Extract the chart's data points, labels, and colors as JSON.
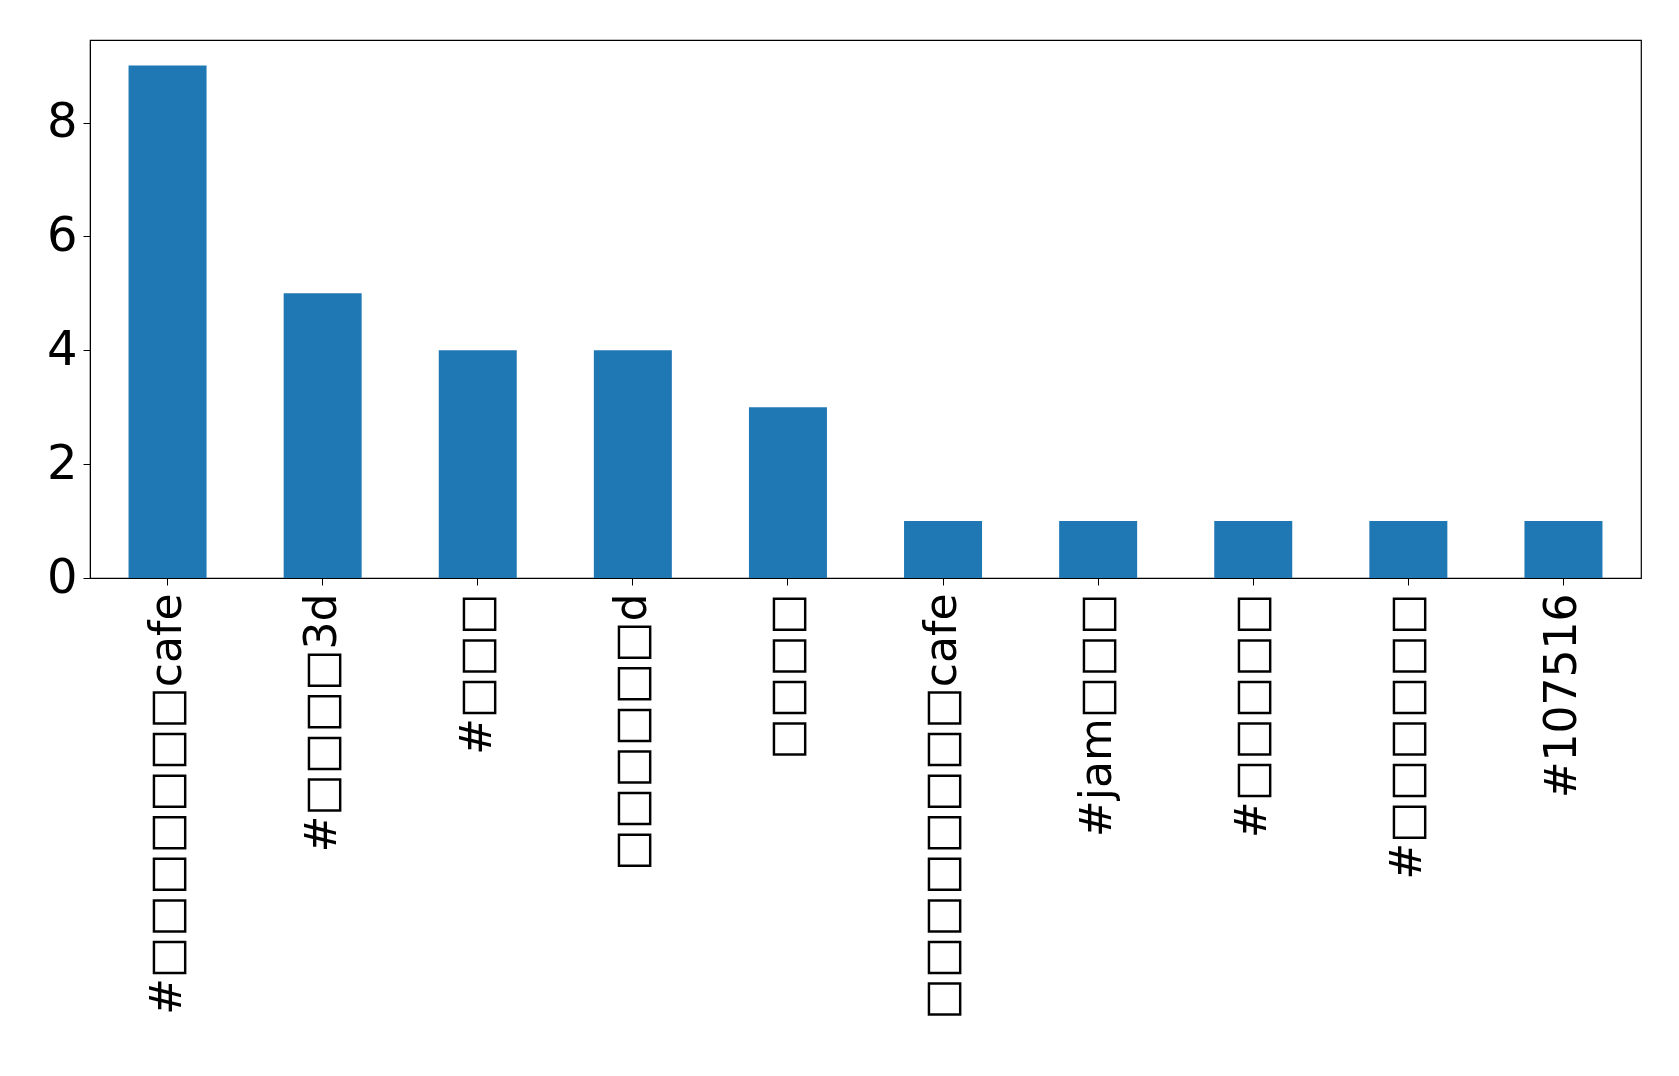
{
  "chart_data": {
    "type": "bar",
    "categories": [
      "#□□□□□□□cafe",
      "#□□□□3d",
      "#□□□",
      "□□□□□□d",
      "□□□□",
      "□□□□□□□□cafe",
      "#jam□□□",
      "#□□□□□",
      "#□□□□□□",
      "#107516"
    ],
    "values": [
      9,
      5,
      4,
      4,
      3,
      1,
      1,
      1,
      1,
      1
    ],
    "color": "#1f77b4",
    "ylim": [
      0,
      9.45
    ],
    "yticks": [
      0,
      2,
      4,
      6,
      8
    ],
    "grid": false
  }
}
